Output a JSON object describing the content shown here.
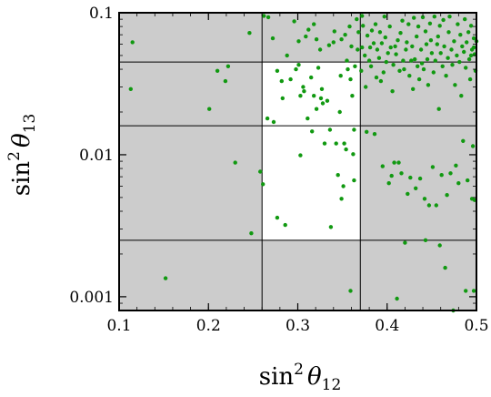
{
  "chart_data": {
    "type": "scatter",
    "x_axis": {
      "label_main": "sin",
      "label_sup": "2",
      "label_theta": "θ",
      "label_sub": "12",
      "scale": "linear",
      "range": [
        0.1,
        0.5
      ],
      "ticks": [
        0.1,
        0.2,
        0.3,
        0.4,
        0.5
      ],
      "tick_labels": [
        "0.1",
        "0.2",
        "0.3",
        "0.4",
        "0.5"
      ]
    },
    "y_axis": {
      "label_main": "sin",
      "label_sup": "2",
      "label_theta": "θ",
      "label_sub": "13",
      "scale": "log",
      "range": [
        0.0008,
        0.1
      ],
      "ticks": [
        0.001,
        0.01,
        0.1
      ],
      "tick_labels": [
        "0.001",
        "0.01",
        "0.1"
      ]
    },
    "allowed_region": {
      "x_range": [
        0.26,
        0.37
      ],
      "y_range": [
        0.0025,
        0.045
      ],
      "inner_y_line": 0.016
    },
    "colors": {
      "background": "#cccccc",
      "allowed": "#ffffff",
      "points": "#119911",
      "grid": "#000000"
    },
    "points": [
      [
        0.115,
        0.062
      ],
      [
        0.113,
        0.029
      ],
      [
        0.152,
        0.00135
      ],
      [
        0.201,
        0.021
      ],
      [
        0.21,
        0.039
      ],
      [
        0.222,
        0.042
      ],
      [
        0.219,
        0.033
      ],
      [
        0.23,
        0.0088
      ],
      [
        0.246,
        0.072
      ],
      [
        0.248,
        0.0028
      ],
      [
        0.258,
        0.0076
      ],
      [
        0.261,
        0.0062
      ],
      [
        0.262,
        0.095
      ],
      [
        0.266,
        0.018
      ],
      [
        0.267,
        0.093
      ],
      [
        0.273,
        0.017
      ],
      [
        0.272,
        0.066
      ],
      [
        0.277,
        0.0036
      ],
      [
        0.277,
        0.039
      ],
      [
        0.282,
        0.033
      ],
      [
        0.286,
        0.0032
      ],
      [
        0.283,
        0.025
      ],
      [
        0.288,
        0.05
      ],
      [
        0.292,
        0.034
      ],
      [
        0.296,
        0.087
      ],
      [
        0.298,
        0.04
      ],
      [
        0.301,
        0.043
      ],
      [
        0.301,
        0.063
      ],
      [
        0.303,
        0.0099
      ],
      [
        0.303,
        0.026
      ],
      [
        0.306,
        0.03
      ],
      [
        0.307,
        0.028
      ],
      [
        0.309,
        0.068
      ],
      [
        0.311,
        0.018
      ],
      [
        0.312,
        0.076
      ],
      [
        0.315,
        0.035
      ],
      [
        0.316,
        0.0146
      ],
      [
        0.318,
        0.083
      ],
      [
        0.318,
        0.026
      ],
      [
        0.321,
        0.065
      ],
      [
        0.321,
        0.021
      ],
      [
        0.323,
        0.041
      ],
      [
        0.325,
        0.055
      ],
      [
        0.326,
        0.025
      ],
      [
        0.327,
        0.029
      ],
      [
        0.328,
        0.023
      ],
      [
        0.33,
        0.012
      ],
      [
        0.333,
        0.024
      ],
      [
        0.335,
        0.059
      ],
      [
        0.336,
        0.015
      ],
      [
        0.337,
        0.0031
      ],
      [
        0.34,
        0.062
      ],
      [
        0.341,
        0.074
      ],
      [
        0.343,
        0.012
      ],
      [
        0.345,
        0.0072
      ],
      [
        0.347,
        0.02
      ],
      [
        0.348,
        0.036
      ],
      [
        0.349,
        0.0049
      ],
      [
        0.349,
        0.065
      ],
      [
        0.351,
        0.006
      ],
      [
        0.352,
        0.012
      ],
      [
        0.353,
        0.07
      ],
      [
        0.354,
        0.0109
      ],
      [
        0.355,
        0.046
      ],
      [
        0.356,
        0.04
      ],
      [
        0.358,
        0.08
      ],
      [
        0.359,
        0.034
      ],
      [
        0.359,
        0.0011
      ],
      [
        0.36,
        0.058
      ],
      [
        0.361,
        0.026
      ],
      [
        0.362,
        0.0101
      ],
      [
        0.363,
        0.015
      ],
      [
        0.363,
        0.0066
      ],
      [
        0.364,
        0.042
      ],
      [
        0.366,
        0.09
      ],
      [
        0.367,
        0.055
      ],
      [
        0.368,
        0.073
      ],
      [
        0.371,
        0.039
      ],
      [
        0.372,
        0.095
      ],
      [
        0.372,
        0.057
      ],
      [
        0.373,
        0.081
      ],
      [
        0.375,
        0.05
      ],
      [
        0.376,
        0.03
      ],
      [
        0.377,
        0.0145
      ],
      [
        0.378,
        0.069
      ],
      [
        0.38,
        0.046
      ],
      [
        0.381,
        0.057
      ],
      [
        0.382,
        0.042
      ],
      [
        0.383,
        0.075
      ],
      [
        0.385,
        0.061
      ],
      [
        0.386,
        0.014
      ],
      [
        0.387,
        0.083
      ],
      [
        0.388,
        0.035
      ],
      [
        0.389,
        0.055
      ],
      [
        0.391,
        0.048
      ],
      [
        0.392,
        0.073
      ],
      [
        0.393,
        0.033
      ],
      [
        0.394,
        0.061
      ],
      [
        0.395,
        0.0083
      ],
      [
        0.396,
        0.038
      ],
      [
        0.397,
        0.094
      ],
      [
        0.398,
        0.067
      ],
      [
        0.399,
        0.045
      ],
      [
        0.401,
        0.052
      ],
      [
        0.402,
        0.0063
      ],
      [
        0.403,
        0.08
      ],
      [
        0.404,
        0.057
      ],
      [
        0.405,
        0.0071
      ],
      [
        0.406,
        0.028
      ],
      [
        0.407,
        0.043
      ],
      [
        0.408,
        0.0088
      ],
      [
        0.409,
        0.058
      ],
      [
        0.41,
        0.051
      ],
      [
        0.411,
        0.00097
      ],
      [
        0.412,
        0.064
      ],
      [
        0.413,
        0.0088
      ],
      [
        0.414,
        0.039
      ],
      [
        0.415,
        0.072
      ],
      [
        0.416,
        0.0074
      ],
      [
        0.417,
        0.088
      ],
      [
        0.418,
        0.046
      ],
      [
        0.419,
        0.04
      ],
      [
        0.42,
        0.0024
      ],
      [
        0.421,
        0.055
      ],
      [
        0.422,
        0.062
      ],
      [
        0.423,
        0.0053
      ],
      [
        0.424,
        0.083
      ],
      [
        0.425,
        0.036
      ],
      [
        0.426,
        0.0069
      ],
      [
        0.427,
        0.046
      ],
      [
        0.428,
        0.058
      ],
      [
        0.429,
        0.029
      ],
      [
        0.43,
        0.092
      ],
      [
        0.431,
        0.047
      ],
      [
        0.432,
        0.0058
      ],
      [
        0.433,
        0.068
      ],
      [
        0.434,
        0.042
      ],
      [
        0.435,
        0.08
      ],
      [
        0.436,
        0.034
      ],
      [
        0.437,
        0.0068
      ],
      [
        0.438,
        0.055
      ],
      [
        0.439,
        0.044
      ],
      [
        0.44,
        0.093
      ],
      [
        0.441,
        0.04
      ],
      [
        0.442,
        0.0049
      ],
      [
        0.443,
        0.074
      ],
      [
        0.444,
        0.06
      ],
      [
        0.445,
        0.047
      ],
      [
        0.446,
        0.031
      ],
      [
        0.447,
        0.0044
      ],
      [
        0.448,
        0.084
      ],
      [
        0.449,
        0.064
      ],
      [
        0.45,
        0.052
      ],
      [
        0.451,
        0.0082
      ],
      [
        0.452,
        0.038
      ],
      [
        0.453,
        0.094
      ],
      [
        0.454,
        0.046
      ],
      [
        0.455,
        0.0044
      ],
      [
        0.456,
        0.06
      ],
      [
        0.457,
        0.068
      ],
      [
        0.458,
        0.021
      ],
      [
        0.459,
        0.081
      ],
      [
        0.46,
        0.052
      ],
      [
        0.461,
        0.0072
      ],
      [
        0.462,
        0.042
      ],
      [
        0.463,
        0.089
      ],
      [
        0.464,
        0.058
      ],
      [
        0.465,
        0.0016
      ],
      [
        0.466,
        0.036
      ],
      [
        0.467,
        0.0052
      ],
      [
        0.468,
        0.048
      ],
      [
        0.469,
        0.073
      ],
      [
        0.47,
        0.094
      ],
      [
        0.471,
        0.0074
      ],
      [
        0.472,
        0.055
      ],
      [
        0.473,
        0.043
      ],
      [
        0.474,
        0.0008
      ],
      [
        0.475,
        0.063
      ],
      [
        0.476,
        0.031
      ],
      [
        0.477,
        0.0084
      ],
      [
        0.478,
        0.05
      ],
      [
        0.479,
        0.083
      ],
      [
        0.48,
        0.0063
      ],
      [
        0.481,
        0.045
      ],
      [
        0.482,
        0.07
      ],
      [
        0.483,
        0.026
      ],
      [
        0.484,
        0.058
      ],
      [
        0.485,
        0.0125
      ],
      [
        0.486,
        0.053
      ],
      [
        0.487,
        0.09
      ],
      [
        0.488,
        0.041
      ],
      [
        0.489,
        0.062
      ],
      [
        0.49,
        0.0066
      ],
      [
        0.491,
        0.073
      ],
      [
        0.492,
        0.047
      ],
      [
        0.493,
        0.034
      ],
      [
        0.494,
        0.081
      ],
      [
        0.495,
        0.055
      ],
      [
        0.496,
        0.0115
      ],
      [
        0.497,
        0.066
      ],
      [
        0.498,
        0.0048
      ],
      [
        0.499,
        0.039
      ],
      [
        0.497,
        0.057
      ],
      [
        0.495,
        0.0049
      ],
      [
        0.494,
        0.05
      ],
      [
        0.497,
        0.0011
      ],
      [
        0.5,
        0.063
      ],
      [
        0.498,
        0.051
      ],
      [
        0.443,
        0.0025
      ],
      [
        0.459,
        0.0023
      ],
      [
        0.488,
        0.0011
      ]
    ]
  }
}
